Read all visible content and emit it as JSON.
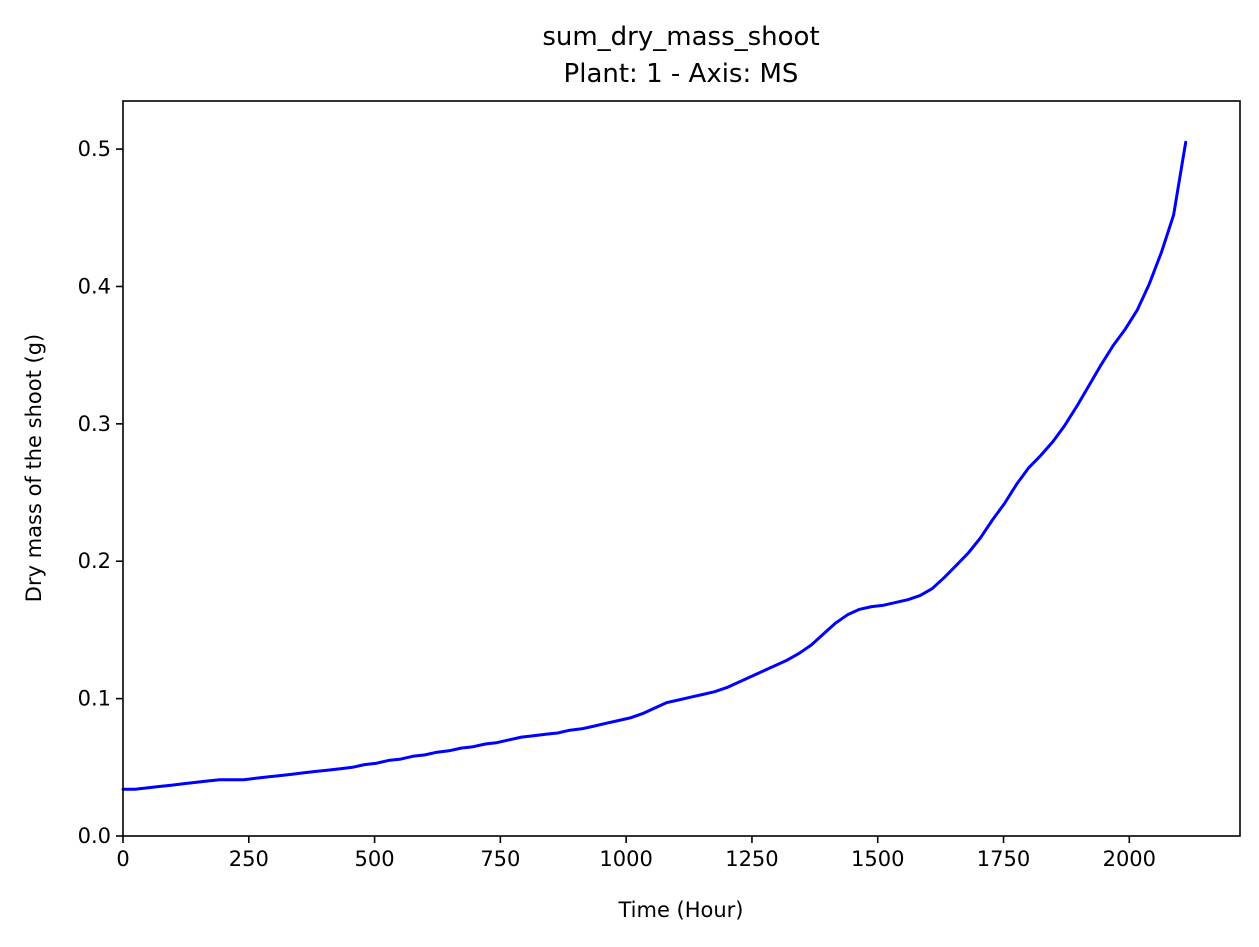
{
  "chart_data": {
    "type": "line",
    "title": "sum_dry_mass_shoot",
    "subtitle": "Plant: 1 - Axis: MS",
    "xlabel": "Time (Hour)",
    "ylabel": "Dry mass of the shoot (g)",
    "xlim": [
      0,
      2220
    ],
    "ylim": [
      0,
      0.535
    ],
    "xticks": [
      0,
      250,
      500,
      750,
      1000,
      1250,
      1500,
      1750,
      2000
    ],
    "xtick_labels": [
      "0",
      "250",
      "500",
      "750",
      "1000",
      "1250",
      "1500",
      "1750",
      "2000"
    ],
    "yticks": [
      0.0,
      0.1,
      0.2,
      0.3,
      0.4,
      0.5
    ],
    "ytick_labels": [
      "0.0",
      "0.1",
      "0.2",
      "0.3",
      "0.4",
      "0.5"
    ],
    "grid": false,
    "series": [
      {
        "color": "#0000ff",
        "x": [
          0,
          24,
          48,
          72,
          96,
          120,
          144,
          168,
          192,
          216,
          240,
          264,
          288,
          312,
          336,
          360,
          384,
          408,
          432,
          456,
          480,
          504,
          528,
          552,
          576,
          600,
          624,
          648,
          672,
          696,
          720,
          744,
          768,
          792,
          816,
          840,
          864,
          888,
          912,
          936,
          960,
          984,
          1008,
          1032,
          1056,
          1080,
          1104,
          1128,
          1152,
          1176,
          1200,
          1224,
          1248,
          1272,
          1296,
          1320,
          1344,
          1368,
          1392,
          1416,
          1440,
          1464,
          1488,
          1512,
          1536,
          1560,
          1584,
          1608,
          1632,
          1656,
          1680,
          1704,
          1728,
          1752,
          1776,
          1800,
          1824,
          1848,
          1872,
          1896,
          1920,
          1944,
          1968,
          1992,
          2016,
          2040,
          2064,
          2088,
          2112
        ],
        "y": [
          0.034,
          0.034,
          0.035,
          0.036,
          0.037,
          0.038,
          0.039,
          0.04,
          0.041,
          0.041,
          0.041,
          0.042,
          0.043,
          0.044,
          0.045,
          0.046,
          0.047,
          0.048,
          0.049,
          0.05,
          0.052,
          0.053,
          0.055,
          0.056,
          0.058,
          0.059,
          0.061,
          0.062,
          0.064,
          0.065,
          0.067,
          0.068,
          0.07,
          0.072,
          0.073,
          0.074,
          0.075,
          0.077,
          0.078,
          0.08,
          0.082,
          0.084,
          0.086,
          0.089,
          0.093,
          0.097,
          0.099,
          0.101,
          0.103,
          0.105,
          0.108,
          0.112,
          0.116,
          0.12,
          0.124,
          0.128,
          0.133,
          0.139,
          0.147,
          0.155,
          0.161,
          0.165,
          0.167,
          0.168,
          0.17,
          0.172,
          0.175,
          0.18,
          0.188,
          0.197,
          0.206,
          0.217,
          0.23,
          0.242,
          0.256,
          0.268,
          0.277,
          0.287,
          0.299,
          0.313,
          0.328,
          0.343,
          0.357,
          0.369,
          0.383,
          0.402,
          0.425,
          0.452,
          0.505
        ]
      }
    ]
  }
}
